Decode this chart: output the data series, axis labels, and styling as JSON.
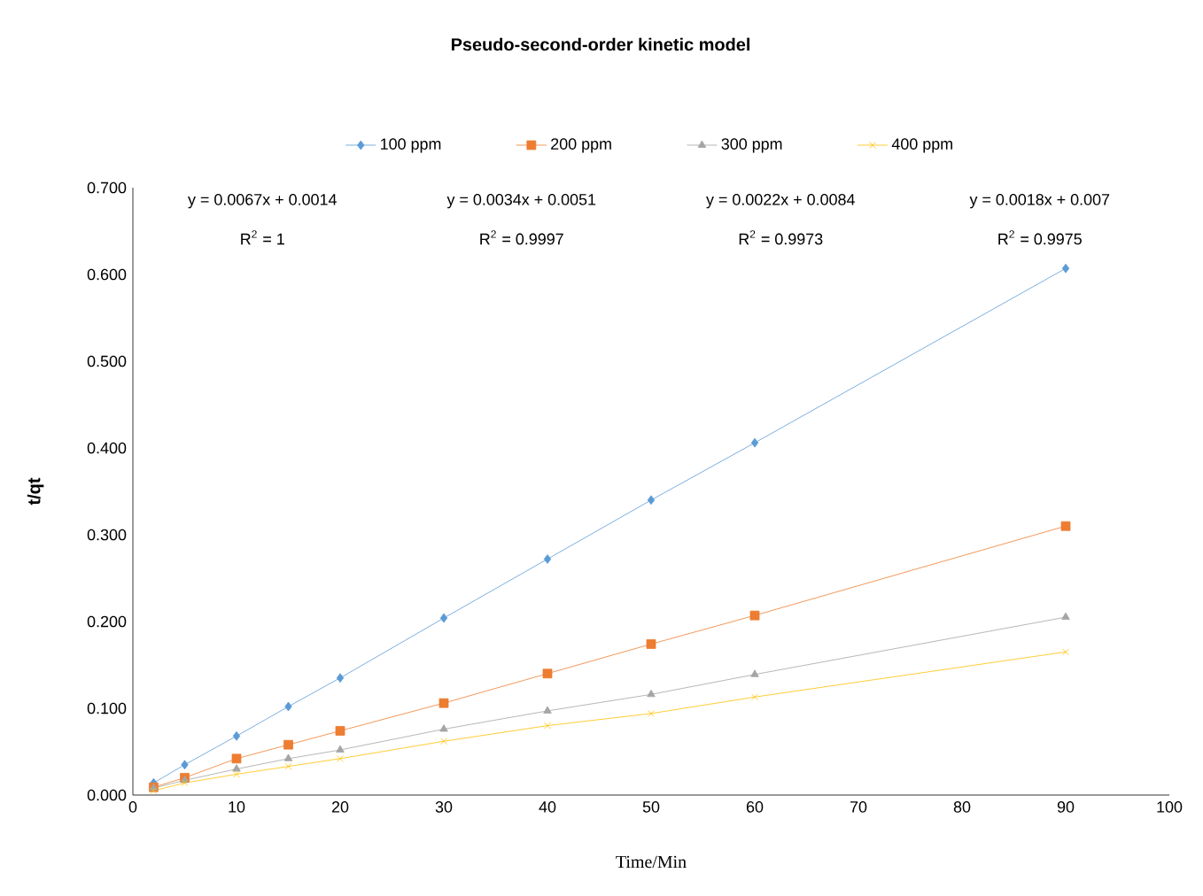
{
  "chart_data": {
    "type": "line",
    "title": "Pseudo-second-order kinetic model",
    "xlabel": "Time/Min",
    "ylabel": "t/qt",
    "x": [
      2,
      5,
      10,
      15,
      20,
      30,
      40,
      50,
      60,
      90
    ],
    "series": [
      {
        "name": "100 ppm",
        "color": "#5b9bd5",
        "marker": "diamond",
        "values": [
          0.014,
          0.035,
          0.068,
          0.102,
          0.135,
          0.204,
          0.272,
          0.34,
          0.406,
          0.607
        ]
      },
      {
        "name": "200 ppm",
        "color": "#ed7d31",
        "marker": "square",
        "values": [
          0.009,
          0.02,
          0.042,
          0.058,
          0.074,
          0.106,
          0.14,
          0.174,
          0.207,
          0.31
        ]
      },
      {
        "name": "300 ppm",
        "color": "#a5a5a5",
        "marker": "triangle",
        "values": [
          0.008,
          0.017,
          0.03,
          0.042,
          0.052,
          0.076,
          0.097,
          0.116,
          0.139,
          0.205
        ]
      },
      {
        "name": "400 ppm",
        "color": "#ffc000",
        "marker": "cross",
        "values": [
          0.005,
          0.014,
          0.024,
          0.033,
          0.042,
          0.062,
          0.08,
          0.094,
          0.113,
          0.165
        ]
      }
    ],
    "annotations": [
      "y = 0.0067x + 0.0014",
      "R$^{2}$ = 1",
      "y = 0.0034x + 0.0051",
      "R$^{2}$ = 0.9997",
      "y = 0.0022x + 0.0084",
      "R$^{2}$ = 0.9973",
      "y = 0.0018x + 0.007",
      "R$^{2}$ = 0.9975"
    ],
    "xlim": [
      0,
      100
    ],
    "xticks": [
      0,
      10,
      20,
      30,
      40,
      50,
      60,
      70,
      80,
      90,
      100
    ],
    "ylim": [
      0,
      0.7
    ],
    "yticks": [
      {
        "value": 0,
        "label": "0.000"
      },
      {
        "value": 0.1,
        "label": "0.100"
      },
      {
        "value": 0.2,
        "label": "0.200"
      },
      {
        "value": 0.3,
        "label": "0.300"
      },
      {
        "value": 0.4,
        "label": "0.400"
      },
      {
        "value": 0.5,
        "label": "0.500"
      },
      {
        "value": 0.6,
        "label": "0.600"
      },
      {
        "value": 0.7,
        "label": "0.700"
      }
    ],
    "grid": false,
    "legend": "top"
  }
}
